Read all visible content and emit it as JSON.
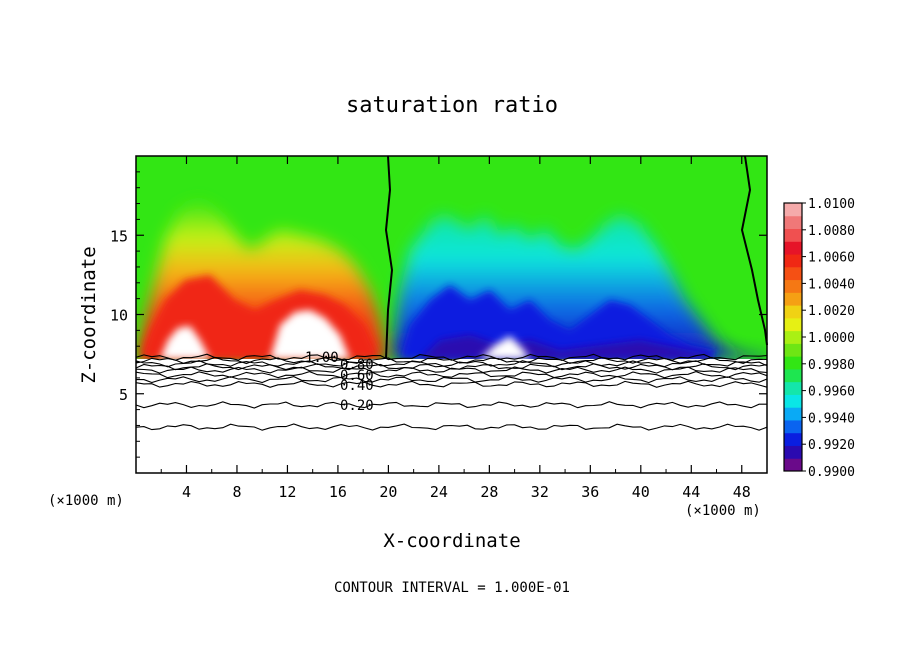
{
  "chart_data": {
    "type": "heatmap",
    "title": "saturation ratio",
    "xlabel": "X-coordinate",
    "ylabel": "Z-coordinate",
    "x_unit": "(×1000 m)",
    "y_unit": "(×1000 m)",
    "xlim": [
      0,
      50
    ],
    "ylim": [
      0,
      20
    ],
    "x_ticks": [
      "4",
      "8",
      "12",
      "16",
      "20",
      "24",
      "28",
      "32",
      "36",
      "40",
      "44",
      "48"
    ],
    "x_tick_values": [
      4,
      8,
      12,
      16,
      20,
      24,
      28,
      32,
      36,
      40,
      44,
      48
    ],
    "y_ticks": [
      "5",
      "10",
      "15"
    ],
    "y_tick_values": [
      5,
      10,
      15
    ],
    "colorbar": {
      "labels": [
        "1.0100",
        "1.0080",
        "1.0060",
        "1.0040",
        "1.0020",
        "1.0000",
        "0.9980",
        "0.9960",
        "0.9940",
        "0.9920",
        "0.9900"
      ],
      "min": 0.99,
      "max": 1.01,
      "colors": [
        "#6a0a8a",
        "#2a0ab0",
        "#0a1ee0",
        "#0a64f0",
        "#0aaaf5",
        "#0ae6e6",
        "#14e6aa",
        "#1ee650",
        "#32e614",
        "#6ee614",
        "#aaf014",
        "#e6f014",
        "#f0d214",
        "#f5a014",
        "#f57814",
        "#f55014",
        "#f02814",
        "#e61428",
        "#f05050",
        "#f07878",
        "#f5aaaa"
      ]
    },
    "contours": [
      {
        "label": "1.00",
        "z": 7.3
      },
      {
        "label": "0.80",
        "z": 6.9
      },
      {
        "label": "0.60",
        "z": 6.5
      },
      {
        "label": "0.40",
        "z": 5.9
      },
      {
        "label": "0.20",
        "z": 4.3
      }
    ],
    "footer": "CONTOUR INTERVAL = 1.000E-01"
  }
}
